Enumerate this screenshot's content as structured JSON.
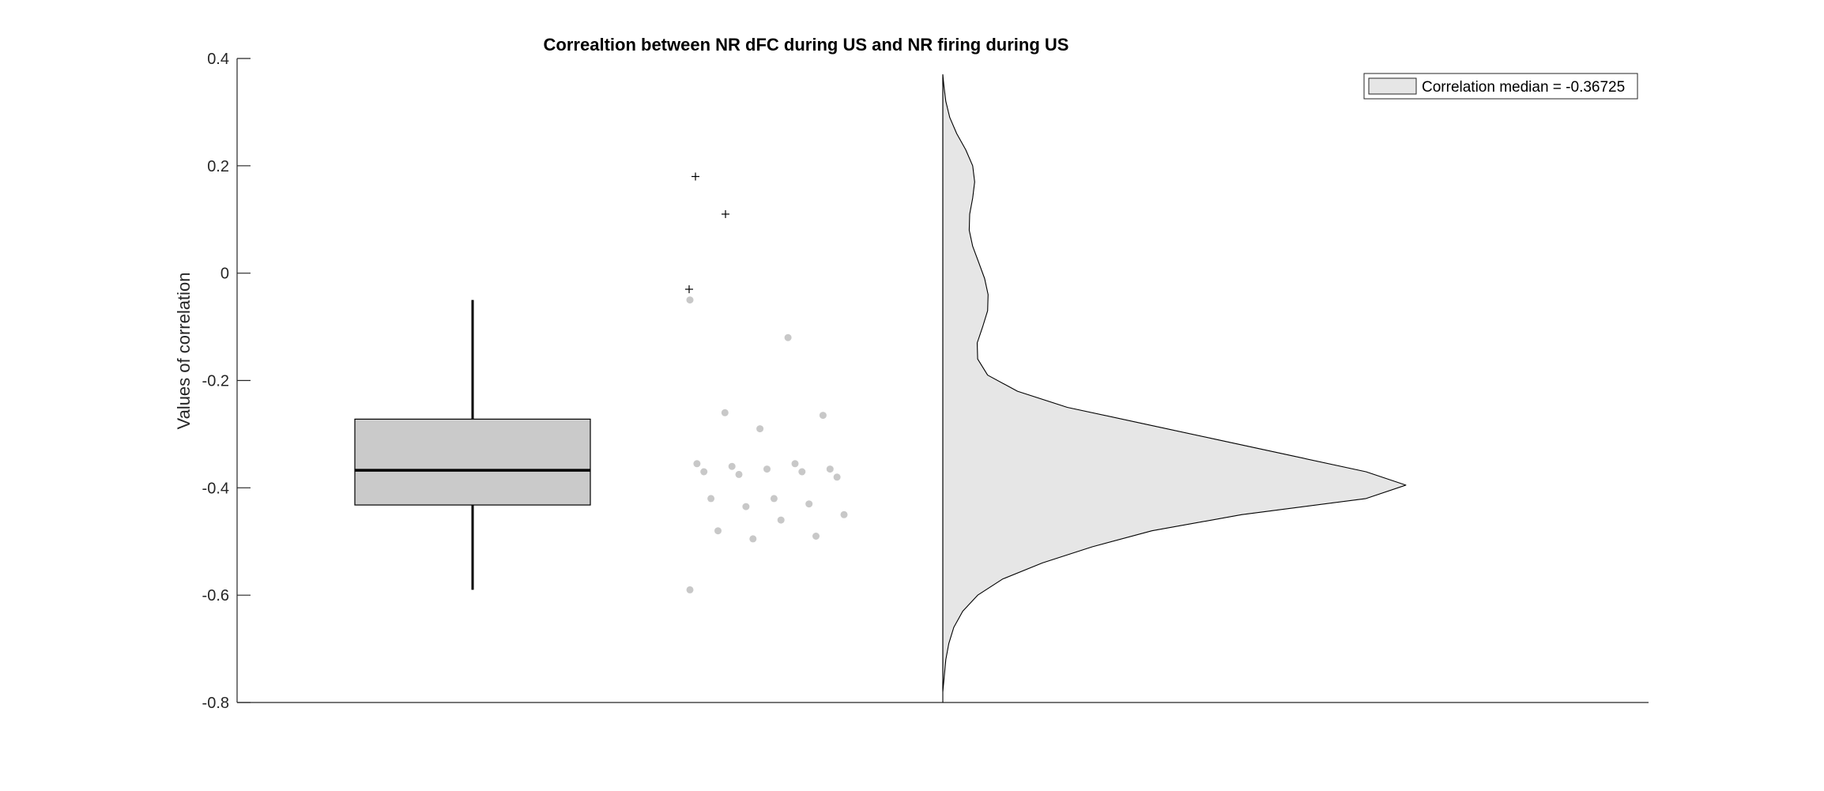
{
  "chart_data": {
    "type": "raincloud",
    "title": "Correaltion between NR dFC during US and NR firing during US",
    "xlabel": "",
    "ylabel": "Values of correlation",
    "ylim": [
      -0.8,
      0.4
    ],
    "yticks": [
      -0.8,
      -0.6,
      -0.4,
      -0.2,
      0,
      0.2,
      0.4
    ],
    "ytick_labels": [
      "-0.8",
      "-0.6",
      "-0.4",
      "-0.2",
      "0",
      "0.2",
      "0.4"
    ],
    "grid": false,
    "legend": {
      "position": "top-right",
      "entries": [
        "Correlation median = -0.36725"
      ]
    },
    "colors": {
      "box_fill": "#cacaca",
      "violin_fill": "#e6e6e6",
      "scatter_points": "#c8c8c8",
      "axis": "#262626",
      "median_line": "#000000"
    },
    "boxplot": {
      "median": -0.36725,
      "q1": -0.432,
      "q3": -0.272,
      "whisker_low": -0.59,
      "whisker_high": -0.05,
      "outliers": [
        0.18,
        0.11,
        -0.03
      ]
    },
    "scatter_values": [
      -0.05,
      -0.12,
      -0.26,
      -0.265,
      -0.29,
      -0.355,
      -0.355,
      -0.36,
      -0.365,
      -0.365,
      -0.37,
      -0.37,
      -0.375,
      -0.38,
      -0.42,
      -0.42,
      -0.43,
      -0.435,
      -0.45,
      -0.46,
      -0.48,
      -0.49,
      -0.495,
      -0.59
    ],
    "density_curve": [
      {
        "y": 0.37,
        "d": 0.0
      },
      {
        "y": 0.35,
        "d": 0.002
      },
      {
        "y": 0.32,
        "d": 0.006
      },
      {
        "y": 0.29,
        "d": 0.014
      },
      {
        "y": 0.26,
        "d": 0.028
      },
      {
        "y": 0.23,
        "d": 0.046
      },
      {
        "y": 0.2,
        "d": 0.06
      },
      {
        "y": 0.17,
        "d": 0.064
      },
      {
        "y": 0.14,
        "d": 0.06
      },
      {
        "y": 0.11,
        "d": 0.054
      },
      {
        "y": 0.08,
        "d": 0.053
      },
      {
        "y": 0.05,
        "d": 0.06
      },
      {
        "y": 0.02,
        "d": 0.072
      },
      {
        "y": -0.01,
        "d": 0.084
      },
      {
        "y": -0.04,
        "d": 0.091
      },
      {
        "y": -0.07,
        "d": 0.09
      },
      {
        "y": -0.1,
        "d": 0.08
      },
      {
        "y": -0.13,
        "d": 0.069
      },
      {
        "y": -0.16,
        "d": 0.07
      },
      {
        "y": -0.19,
        "d": 0.09
      },
      {
        "y": -0.22,
        "d": 0.15
      },
      {
        "y": -0.25,
        "d": 0.25
      },
      {
        "y": -0.28,
        "d": 0.4
      },
      {
        "y": -0.31,
        "d": 0.55
      },
      {
        "y": -0.34,
        "d": 0.7
      },
      {
        "y": -0.37,
        "d": 0.85
      },
      {
        "y": -0.395,
        "d": 0.93
      },
      {
        "y": -0.42,
        "d": 0.85
      },
      {
        "y": -0.45,
        "d": 0.6
      },
      {
        "y": -0.48,
        "d": 0.42
      },
      {
        "y": -0.51,
        "d": 0.3
      },
      {
        "y": -0.54,
        "d": 0.2
      },
      {
        "y": -0.57,
        "d": 0.12
      },
      {
        "y": -0.6,
        "d": 0.07
      },
      {
        "y": -0.63,
        "d": 0.04
      },
      {
        "y": -0.66,
        "d": 0.022
      },
      {
        "y": -0.69,
        "d": 0.012
      },
      {
        "y": -0.72,
        "d": 0.006
      },
      {
        "y": -0.75,
        "d": 0.003
      },
      {
        "y": -0.78,
        "d": 0.0
      }
    ]
  }
}
